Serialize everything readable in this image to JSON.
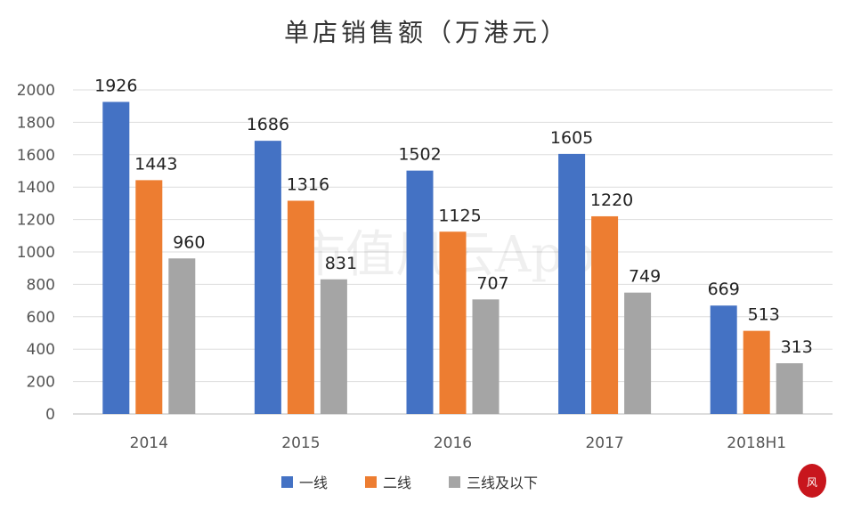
{
  "chart_data": {
    "type": "bar",
    "title": "单店销售额（万港元）",
    "categories": [
      "2014",
      "2015",
      "2016",
      "2017",
      "2018H1"
    ],
    "series": [
      {
        "name": "一线",
        "values": [
          1926,
          1686,
          1502,
          1605,
          669
        ],
        "color": "#4472C4"
      },
      {
        "name": "二线",
        "values": [
          1443,
          1316,
          1125,
          1220,
          513
        ],
        "color": "#ED7D31"
      },
      {
        "name": "三线及以下",
        "values": [
          960,
          831,
          707,
          749,
          313
        ],
        "color": "#A5A5A5"
      }
    ],
    "ylim": [
      0,
      2000
    ],
    "yticks": [
      0,
      200,
      400,
      600,
      800,
      1000,
      1200,
      1400,
      1600,
      1800,
      2000
    ],
    "grid": true,
    "legend_position": "bottom",
    "data_labels": true
  },
  "watermark": "市值风云App"
}
